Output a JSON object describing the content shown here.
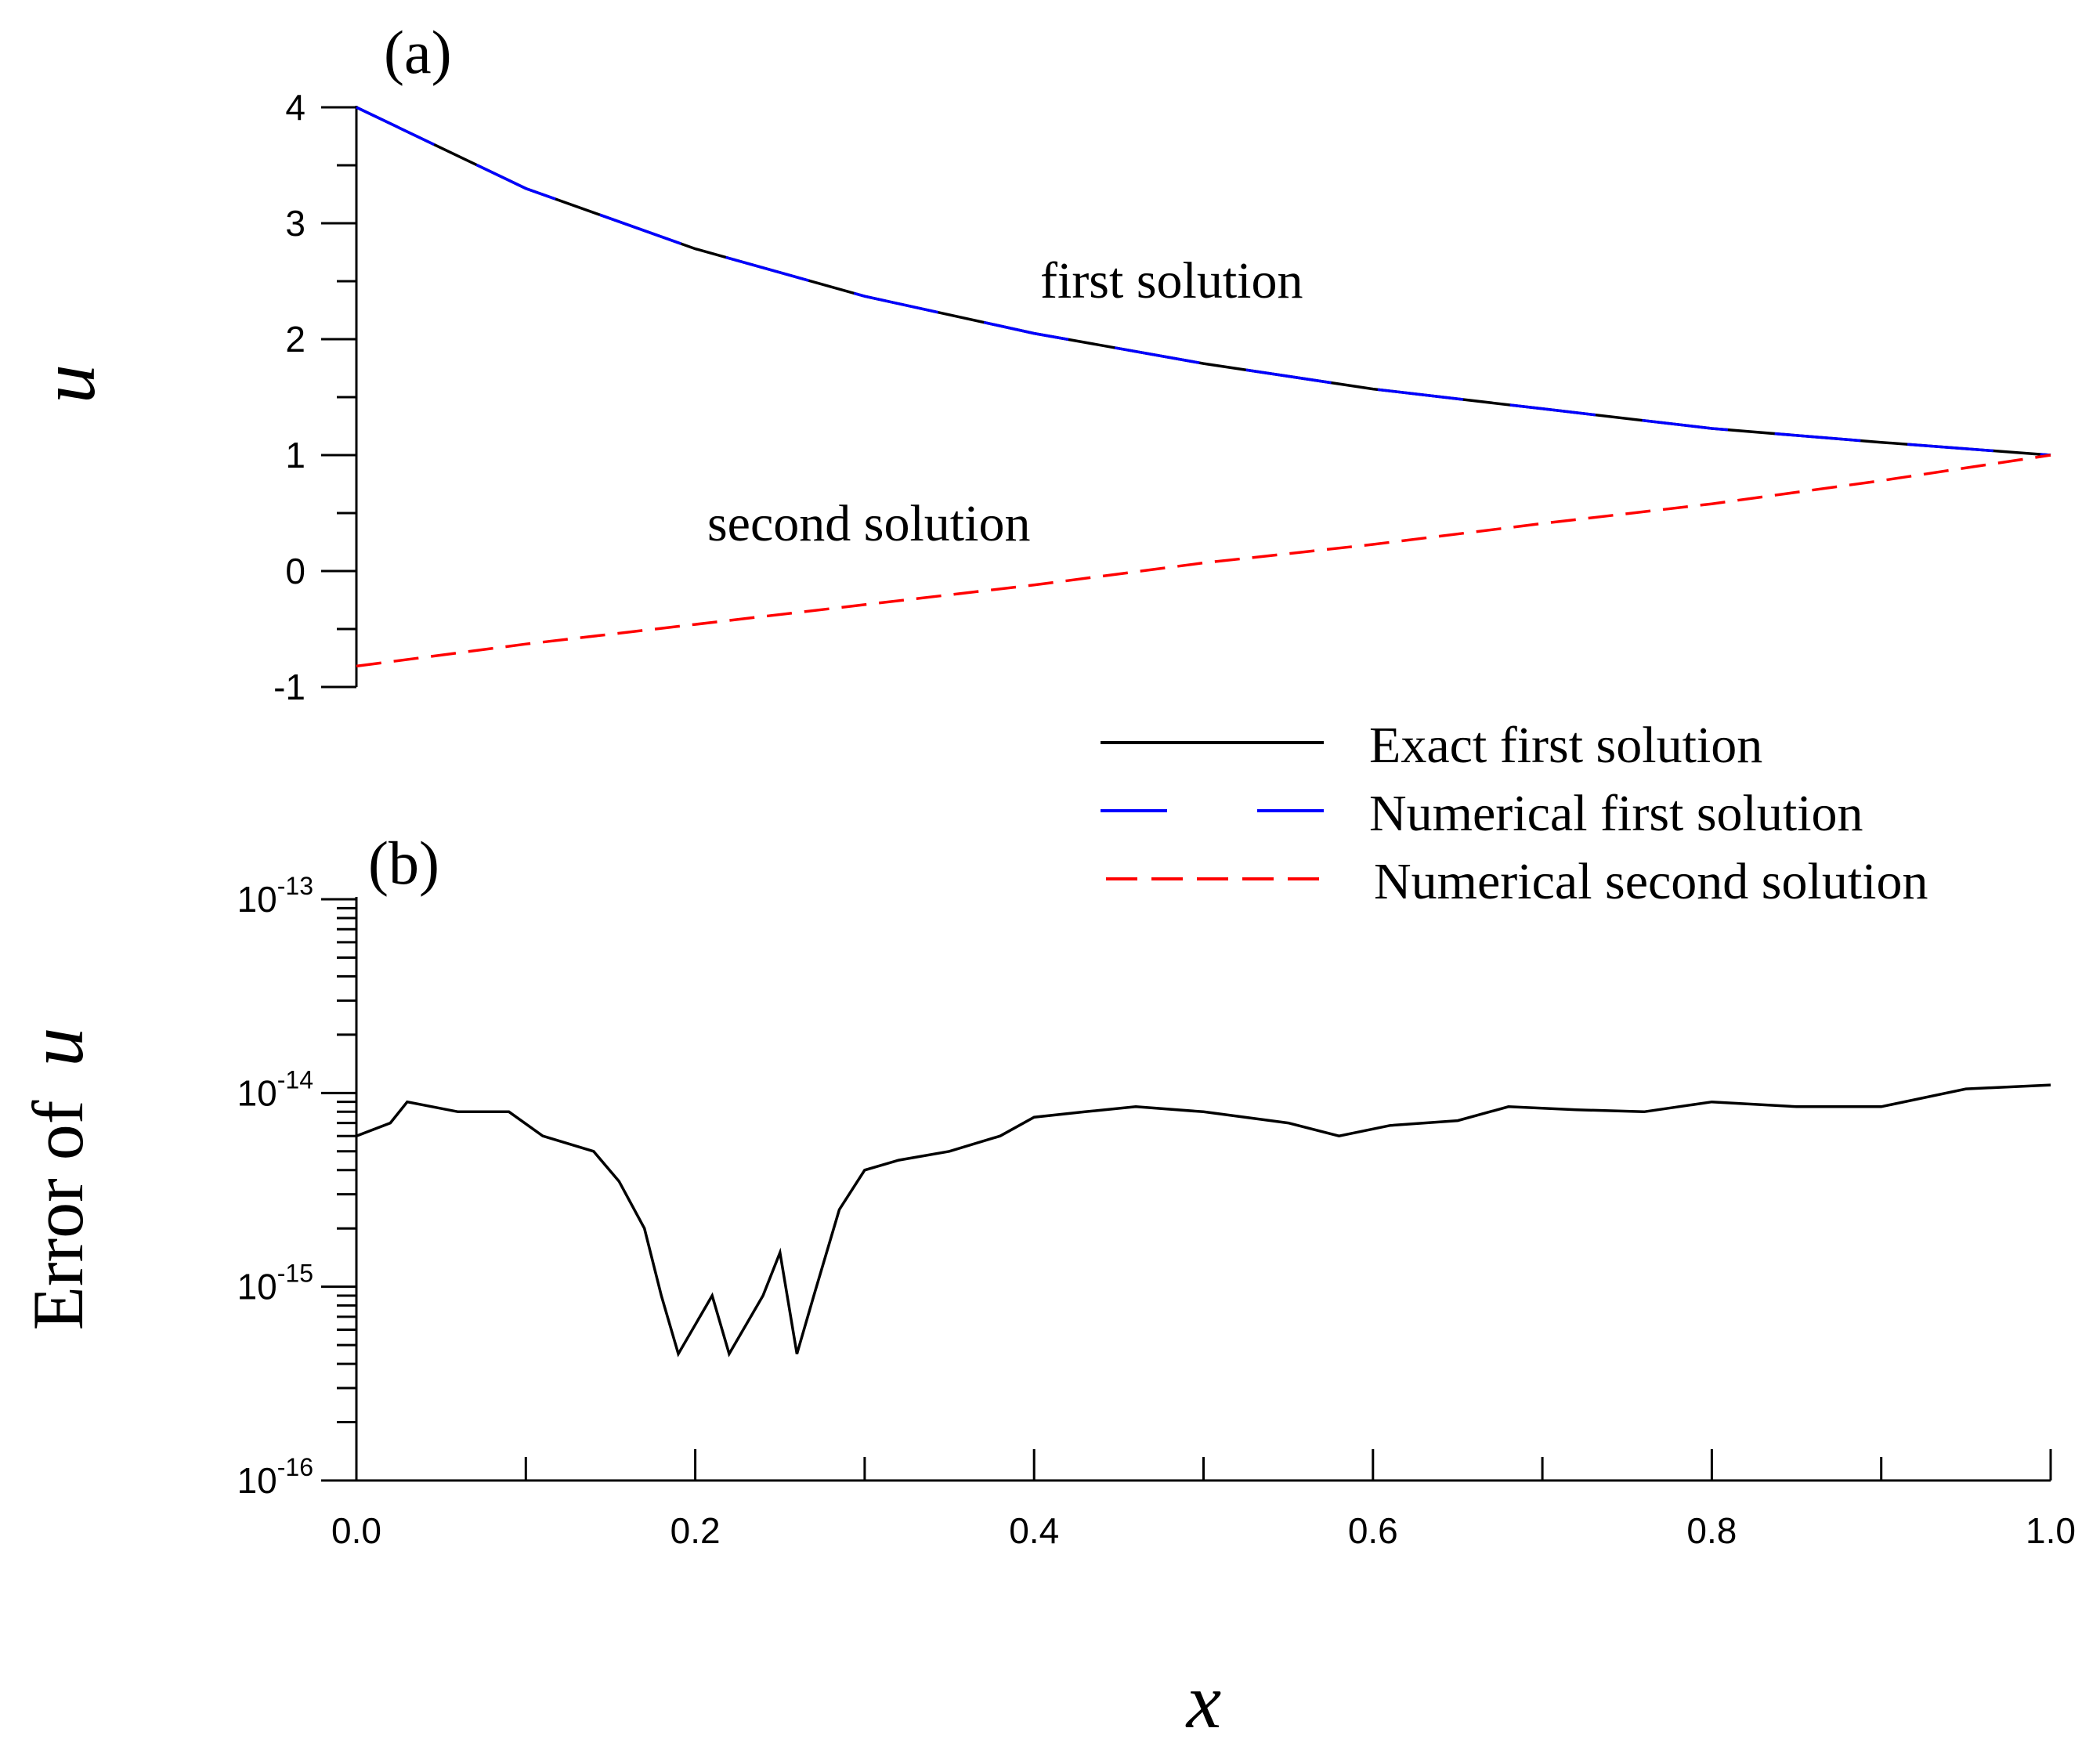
{
  "chart_data": [
    {
      "panel": "(a)",
      "type": "line",
      "ylabel": "u",
      "xlim": [
        0,
        1
      ],
      "ylim": [
        -1,
        4
      ],
      "yticks": [
        -1,
        0,
        1,
        2,
        3,
        4
      ],
      "x": [
        0.0,
        0.1,
        0.2,
        0.3,
        0.4,
        0.5,
        0.6,
        0.7,
        0.8,
        0.9,
        1.0
      ],
      "series": [
        {
          "name": "Exact first solution",
          "color": "#000000",
          "style": "solid",
          "values": [
            4.0,
            3.3,
            2.78,
            2.37,
            2.05,
            1.79,
            1.57,
            1.4,
            1.23,
            1.11,
            1.0
          ]
        },
        {
          "name": "Numerical first solution",
          "color": "#0000ff",
          "style": "long-dash",
          "values": [
            4.0,
            3.3,
            2.78,
            2.37,
            2.05,
            1.79,
            1.57,
            1.4,
            1.23,
            1.11,
            1.0
          ]
        },
        {
          "name": "Numerical second solution",
          "color": "#ff0000",
          "style": "dash",
          "values": [
            -0.82,
            -0.63,
            -0.46,
            -0.29,
            -0.12,
            0.07,
            0.23,
            0.41,
            0.58,
            0.78,
            1.0
          ]
        }
      ],
      "annotations": [
        {
          "text": "first solution",
          "at": [
            0.5,
            2.45
          ]
        },
        {
          "text": "second solution",
          "at": [
            0.325,
            0.35
          ]
        }
      ]
    },
    {
      "panel": "(b)",
      "type": "line",
      "yscale": "log",
      "xlabel": "x",
      "ylabel_prefix": "Error of",
      "ylabel_var": "u",
      "xlim": [
        0,
        1
      ],
      "ylim": [
        1e-16,
        1e-13
      ],
      "xticks": [
        0.0,
        0.2,
        0.4,
        0.6,
        0.8,
        1.0
      ],
      "xtick_labels": [
        "0.0",
        "0.2",
        "0.4",
        "0.6",
        "0.8",
        "1.0"
      ],
      "ytick_exponents": [
        -16,
        -15,
        -14,
        -13
      ],
      "series": [
        {
          "name": "Error of u",
          "color": "#000000",
          "x": [
            0.0,
            0.02,
            0.03,
            0.06,
            0.09,
            0.11,
            0.14,
            0.155,
            0.17,
            0.18,
            0.19,
            0.21,
            0.22,
            0.24,
            0.25,
            0.26,
            0.27,
            0.285,
            0.3,
            0.32,
            0.35,
            0.38,
            0.4,
            0.43,
            0.46,
            0.5,
            0.55,
            0.58,
            0.61,
            0.65,
            0.68,
            0.72,
            0.76,
            0.8,
            0.85,
            0.9,
            0.95,
            1.0
          ],
          "values": [
            6e-15,
            7e-15,
            9e-15,
            8e-15,
            8e-15,
            6e-15,
            5e-15,
            3.5e-15,
            2e-15,
            9e-16,
            4.5e-16,
            9e-16,
            4.5e-16,
            9e-16,
            1.5e-15,
            4.5e-16,
            9e-16,
            2.5e-15,
            4e-15,
            4.5e-15,
            5e-15,
            6e-15,
            7.5e-15,
            8e-15,
            8.5e-15,
            8e-15,
            7e-15,
            6e-15,
            6.8e-15,
            7.2e-15,
            8.5e-15,
            8.2e-15,
            8e-15,
            9e-15,
            8.5e-15,
            8.5e-15,
            1.05e-14,
            1.1e-14
          ]
        }
      ]
    }
  ],
  "legend": {
    "entries": [
      {
        "label": "Exact first solution",
        "color": "#000000",
        "style": "solid"
      },
      {
        "label": "Numerical first solution",
        "color": "#0000ff",
        "style": "long-dash"
      },
      {
        "label": "Numerical second solution",
        "color": "#ff0000",
        "style": "dash"
      }
    ]
  }
}
